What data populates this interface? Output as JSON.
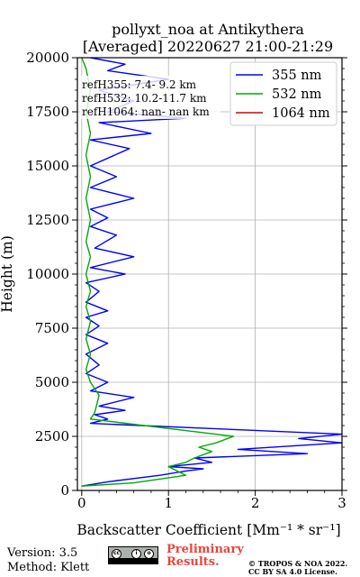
{
  "chart_data": {
    "type": "line",
    "title": "pollyxt_noa at Antikythera",
    "subtitle": "[Averaged] 20220627 21:00-21:29",
    "xlabel": "Backscatter Coefficient [Mm⁻¹ * sr⁻¹]",
    "ylabel": "Height (m)",
    "xlim": [
      -0.05,
      3.0
    ],
    "ylim": [
      0,
      20000
    ],
    "xticks": [
      "0",
      "1",
      "2",
      "3"
    ],
    "yticks": [
      "0",
      "2500",
      "5000",
      "7500",
      "10000",
      "12500",
      "15000",
      "17500",
      "20000"
    ],
    "grid": true,
    "legend_position": "top-right",
    "annotations": [
      "refH355:  7.4- 9.2 km",
      "refH532: 10.2-11.7 km",
      "refH1064:  nan- nan km"
    ],
    "series": [
      {
        "name": "355 nm",
        "color": "#0000ff",
        "points": [
          [
            0.0,
            200
          ],
          [
            0.3,
            400
          ],
          [
            0.9,
            700
          ],
          [
            1.2,
            900
          ],
          [
            1.4,
            1000
          ],
          [
            1.0,
            1100
          ],
          [
            1.5,
            1300
          ],
          [
            1.3,
            1500
          ],
          [
            2.6,
            1700
          ],
          [
            1.8,
            1900
          ],
          [
            3.0,
            2200
          ],
          [
            2.5,
            2400
          ],
          [
            3.0,
            2600
          ],
          [
            0.1,
            3100
          ],
          [
            0.3,
            3300
          ],
          [
            0.15,
            3500
          ],
          [
            0.5,
            3700
          ],
          [
            0.2,
            3900
          ],
          [
            0.6,
            4300
          ],
          [
            0.1,
            4600
          ],
          [
            0.3,
            5000
          ],
          [
            0.05,
            5400
          ],
          [
            0.2,
            5800
          ],
          [
            0.05,
            6300
          ],
          [
            0.3,
            6800
          ],
          [
            0.05,
            7200
          ],
          [
            0.2,
            7600
          ],
          [
            0.05,
            8000
          ],
          [
            0.3,
            8300
          ],
          [
            0.05,
            8700
          ],
          [
            0.2,
            9200
          ],
          [
            0.05,
            9600
          ],
          [
            0.5,
            10000
          ],
          [
            0.1,
            10300
          ],
          [
            0.6,
            10800
          ],
          [
            0.15,
            11200
          ],
          [
            0.4,
            11800
          ],
          [
            0.1,
            12200
          ],
          [
            0.3,
            12600
          ],
          [
            0.1,
            13000
          ],
          [
            0.6,
            13500
          ],
          [
            0.1,
            14000
          ],
          [
            0.4,
            14500
          ],
          [
            0.1,
            15000
          ],
          [
            0.55,
            15800
          ],
          [
            0.1,
            16200
          ],
          [
            0.8,
            16500
          ],
          [
            0.2,
            17000
          ],
          [
            1.2,
            17200
          ],
          [
            0.3,
            17500
          ],
          [
            0.6,
            18000
          ],
          [
            0.2,
            18500
          ],
          [
            1.0,
            19000
          ],
          [
            0.3,
            19400
          ],
          [
            0.5,
            19700
          ],
          [
            0.1,
            20000
          ]
        ]
      },
      {
        "name": "532 nm",
        "color": "#00aa00",
        "points": [
          [
            0.0,
            200
          ],
          [
            0.6,
            350
          ],
          [
            1.2,
            700
          ],
          [
            1.1,
            900
          ],
          [
            1.0,
            1100
          ],
          [
            1.2,
            1300
          ],
          [
            1.3,
            1500
          ],
          [
            1.5,
            1800
          ],
          [
            1.35,
            2000
          ],
          [
            1.55,
            2200
          ],
          [
            1.75,
            2500
          ],
          [
            0.1,
            3300
          ],
          [
            0.15,
            3600
          ],
          [
            0.2,
            4400
          ],
          [
            0.1,
            5000
          ],
          [
            0.05,
            5600
          ],
          [
            0.1,
            6300
          ],
          [
            0.05,
            7000
          ],
          [
            0.1,
            7800
          ],
          [
            0.05,
            8500
          ],
          [
            0.1,
            9200
          ],
          [
            0.05,
            10000
          ],
          [
            0.1,
            10800
          ],
          [
            0.05,
            11500
          ],
          [
            0.1,
            12500
          ],
          [
            0.05,
            13500
          ],
          [
            0.1,
            14500
          ],
          [
            0.05,
            15500
          ],
          [
            0.1,
            16500
          ],
          [
            0.05,
            17500
          ],
          [
            0.1,
            18500
          ],
          [
            0.05,
            19500
          ],
          [
            0.0,
            20000
          ]
        ]
      },
      {
        "name": "1064 nm",
        "color": "#dd0000",
        "points": []
      }
    ]
  },
  "footer": {
    "version": "Version: 3.5",
    "method": "Method: Klett",
    "license_badge": "cc-by-sa-badge",
    "preliminary_line1": "Preliminary",
    "preliminary_line2": "Results.",
    "copyright_line1": "© TROPOS & NOA 2022.",
    "copyright_line2": "CC BY SA 4.0 License."
  }
}
